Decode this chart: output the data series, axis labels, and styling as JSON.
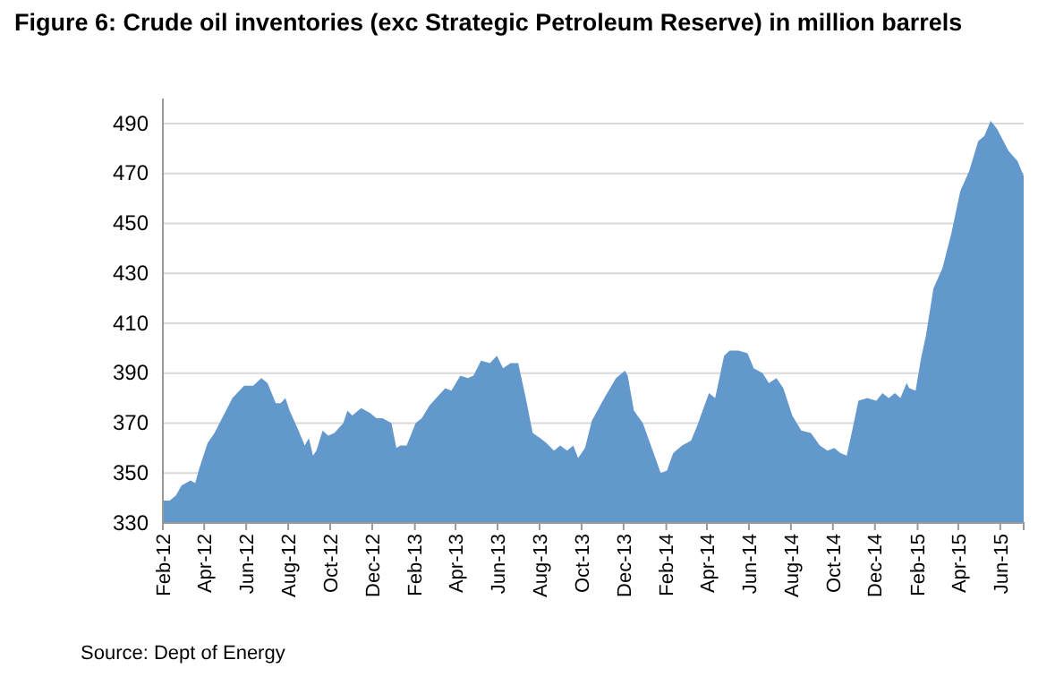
{
  "chart_data": {
    "type": "area",
    "title": "Figure 6: Crude oil inventories (exc Strategic Petroleum Reserve) in million barrels",
    "annotations": [
      "Source: Dept of Energy"
    ],
    "x": [
      "2012-02-01",
      "2012-02-11",
      "2012-02-20",
      "2012-02-28",
      "2012-03-12",
      "2012-03-19",
      "2012-03-25",
      "2012-04-06",
      "2012-04-16",
      "2012-04-29",
      "2012-05-12",
      "2012-05-29",
      "2012-06-11",
      "2012-06-23",
      "2012-07-02",
      "2012-07-14",
      "2012-07-21",
      "2012-07-28",
      "2012-08-03",
      "2012-08-16",
      "2012-08-25",
      "2012-08-31",
      "2012-09-06",
      "2012-09-11",
      "2012-09-20",
      "2012-09-28",
      "2012-10-07",
      "2012-10-20",
      "2012-10-26",
      "2012-11-02",
      "2012-11-15",
      "2012-11-28",
      "2012-12-07",
      "2012-12-16",
      "2012-12-29",
      "2013-01-05",
      "2013-01-11",
      "2013-01-20",
      "2013-02-02",
      "2013-02-11",
      "2013-02-22",
      "2013-03-04",
      "2013-03-17",
      "2013-03-26",
      "2013-04-08",
      "2013-04-19",
      "2013-04-27",
      "2013-05-08",
      "2013-05-21",
      "2013-05-31",
      "2013-06-09",
      "2013-06-20",
      "2013-07-01",
      "2013-07-12",
      "2013-07-22",
      "2013-08-02",
      "2013-08-11",
      "2013-08-22",
      "2013-08-31",
      "2013-09-10",
      "2013-09-19",
      "2013-09-26",
      "2013-10-06",
      "2013-10-16",
      "2013-11-03",
      "2013-11-20",
      "2013-12-03",
      "2013-12-07",
      "2013-12-16",
      "2013-12-29",
      "2014-01-11",
      "2014-01-24",
      "2014-02-02",
      "2014-02-11",
      "2014-02-24",
      "2014-03-09",
      "2014-03-18",
      "2014-04-04",
      "2014-04-13",
      "2014-04-26",
      "2014-05-04",
      "2014-05-17",
      "2014-05-30",
      "2014-06-08",
      "2014-06-21",
      "2014-06-30",
      "2014-07-11",
      "2014-07-21",
      "2014-08-03",
      "2014-08-16",
      "2014-08-30",
      "2014-09-12",
      "2014-09-23",
      "2014-10-03",
      "2014-10-12",
      "2014-10-21",
      "2014-10-29",
      "2014-11-07",
      "2014-11-20",
      "2014-12-03",
      "2014-12-12",
      "2014-12-21",
      "2014-12-30",
      "2015-01-07",
      "2015-01-16",
      "2015-01-20",
      "2015-01-29",
      "2015-02-06",
      "2015-02-13",
      "2015-02-24",
      "2015-03-09",
      "2015-03-22",
      "2015-04-04",
      "2015-04-17",
      "2015-04-30",
      "2015-05-09",
      "2015-05-18",
      "2015-05-27",
      "2015-06-13",
      "2015-06-26",
      "2015-07-05"
    ],
    "series": [
      {
        "color": "#6398cc",
        "values": [
          339,
          339,
          341,
          345,
          347,
          346,
          352,
          362,
          366,
          373,
          380,
          385,
          385,
          388,
          386,
          378,
          378,
          380,
          375,
          367,
          361,
          364,
          357,
          359,
          367,
          365,
          366,
          370,
          375,
          373,
          376,
          374,
          372,
          372,
          370,
          360,
          361,
          361,
          370,
          372,
          377,
          380,
          384,
          383,
          389,
          388,
          389,
          395,
          394,
          397,
          392,
          394,
          394,
          380,
          366,
          364,
          362,
          359,
          361,
          359,
          361,
          356,
          360,
          371,
          380,
          388,
          391,
          389,
          375,
          370,
          360,
          350,
          351,
          358,
          361,
          363,
          369,
          382,
          380,
          397,
          399,
          399,
          398,
          392,
          390,
          386,
          388,
          384,
          373,
          367,
          366,
          361,
          359,
          360,
          358,
          357,
          367,
          379,
          380,
          379,
          382,
          380,
          382,
          380,
          386,
          384,
          383,
          396,
          405,
          424,
          432,
          446,
          463,
          471,
          483,
          485,
          491,
          488,
          479,
          475,
          469
        ]
      }
    ],
    "xlim": [
      "2012-02-01",
      "2015-07-05"
    ],
    "xticks": [
      {
        "value": "2012-02-01",
        "label": "Feb-12"
      },
      {
        "value": "2012-04-01",
        "label": "Apr-12"
      },
      {
        "value": "2012-06-01",
        "label": "Jun-12"
      },
      {
        "value": "2012-08-01",
        "label": "Aug-12"
      },
      {
        "value": "2012-10-01",
        "label": "Oct-12"
      },
      {
        "value": "2012-12-01",
        "label": "Dec-12"
      },
      {
        "value": "2013-02-01",
        "label": "Feb-13"
      },
      {
        "value": "2013-04-01",
        "label": "Apr-13"
      },
      {
        "value": "2013-06-01",
        "label": "Jun-13"
      },
      {
        "value": "2013-08-01",
        "label": "Aug-13"
      },
      {
        "value": "2013-10-01",
        "label": "Oct-13"
      },
      {
        "value": "2013-12-01",
        "label": "Dec-13"
      },
      {
        "value": "2014-02-01",
        "label": "Feb-14"
      },
      {
        "value": "2014-04-01",
        "label": "Apr-14"
      },
      {
        "value": "2014-06-01",
        "label": "Jun-14"
      },
      {
        "value": "2014-08-01",
        "label": "Aug-14"
      },
      {
        "value": "2014-10-01",
        "label": "Oct-14"
      },
      {
        "value": "2014-12-01",
        "label": "Dec-14"
      },
      {
        "value": "2015-02-01",
        "label": "Feb-15"
      },
      {
        "value": "2015-04-01",
        "label": "Apr-15"
      },
      {
        "value": "2015-06-01",
        "label": "Jun-15"
      }
    ],
    "ylim": [
      330,
      500
    ],
    "yticks": [
      330,
      350,
      370,
      390,
      410,
      430,
      450,
      470,
      490
    ],
    "grid": "y"
  }
}
